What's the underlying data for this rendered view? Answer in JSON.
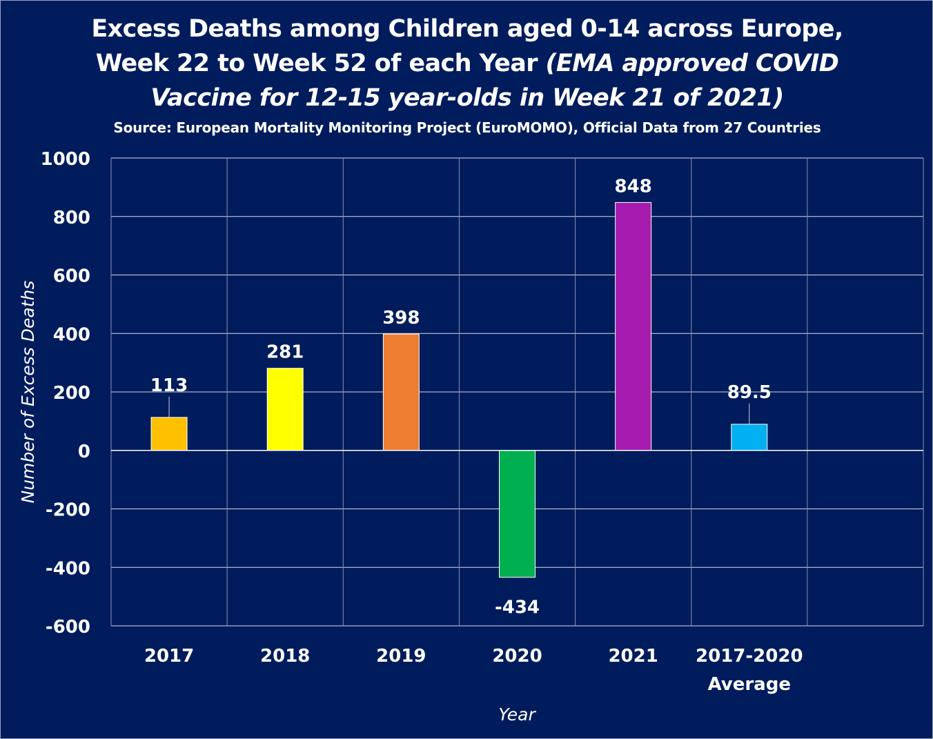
{
  "title": {
    "line1": "Excess Deaths among Children aged 0-14 across Europe,",
    "line2_plain": "Week 22 to Week 52 of each Year ",
    "line2_italic": "(EMA approved COVID",
    "line3_italic": "Vaccine for 12-15 year-olds in Week 21 of 2021)"
  },
  "subtitle": "Source: European Mortality Monitoring Project (EuroMOMO), Official Data from 27 Countries",
  "chart_data": {
    "type": "bar",
    "categories": [
      "2017",
      "2018",
      "2019",
      "2020",
      "2021",
      "2017-2020 Average"
    ],
    "category_lines": [
      [
        "2017"
      ],
      [
        "2018"
      ],
      [
        "2019"
      ],
      [
        "2020"
      ],
      [
        "2021"
      ],
      [
        "2017-2020",
        "Average"
      ]
    ],
    "values": [
      113,
      281,
      398,
      -434,
      848,
      89.5
    ],
    "value_labels": [
      "113",
      "281",
      "398",
      "-434",
      "848",
      "89.5"
    ],
    "colors": [
      "#ffc000",
      "#ffff00",
      "#ed7d31",
      "#00b050",
      "#a61cb0",
      "#00b0f0"
    ],
    "xlabel": "Year",
    "ylabel": "Number of Excess Deaths",
    "ylim": [
      -600,
      1000
    ],
    "yticks": [
      1000,
      800,
      600,
      400,
      200,
      0,
      -200,
      -400,
      -600
    ],
    "grid": true,
    "legend": "none"
  }
}
